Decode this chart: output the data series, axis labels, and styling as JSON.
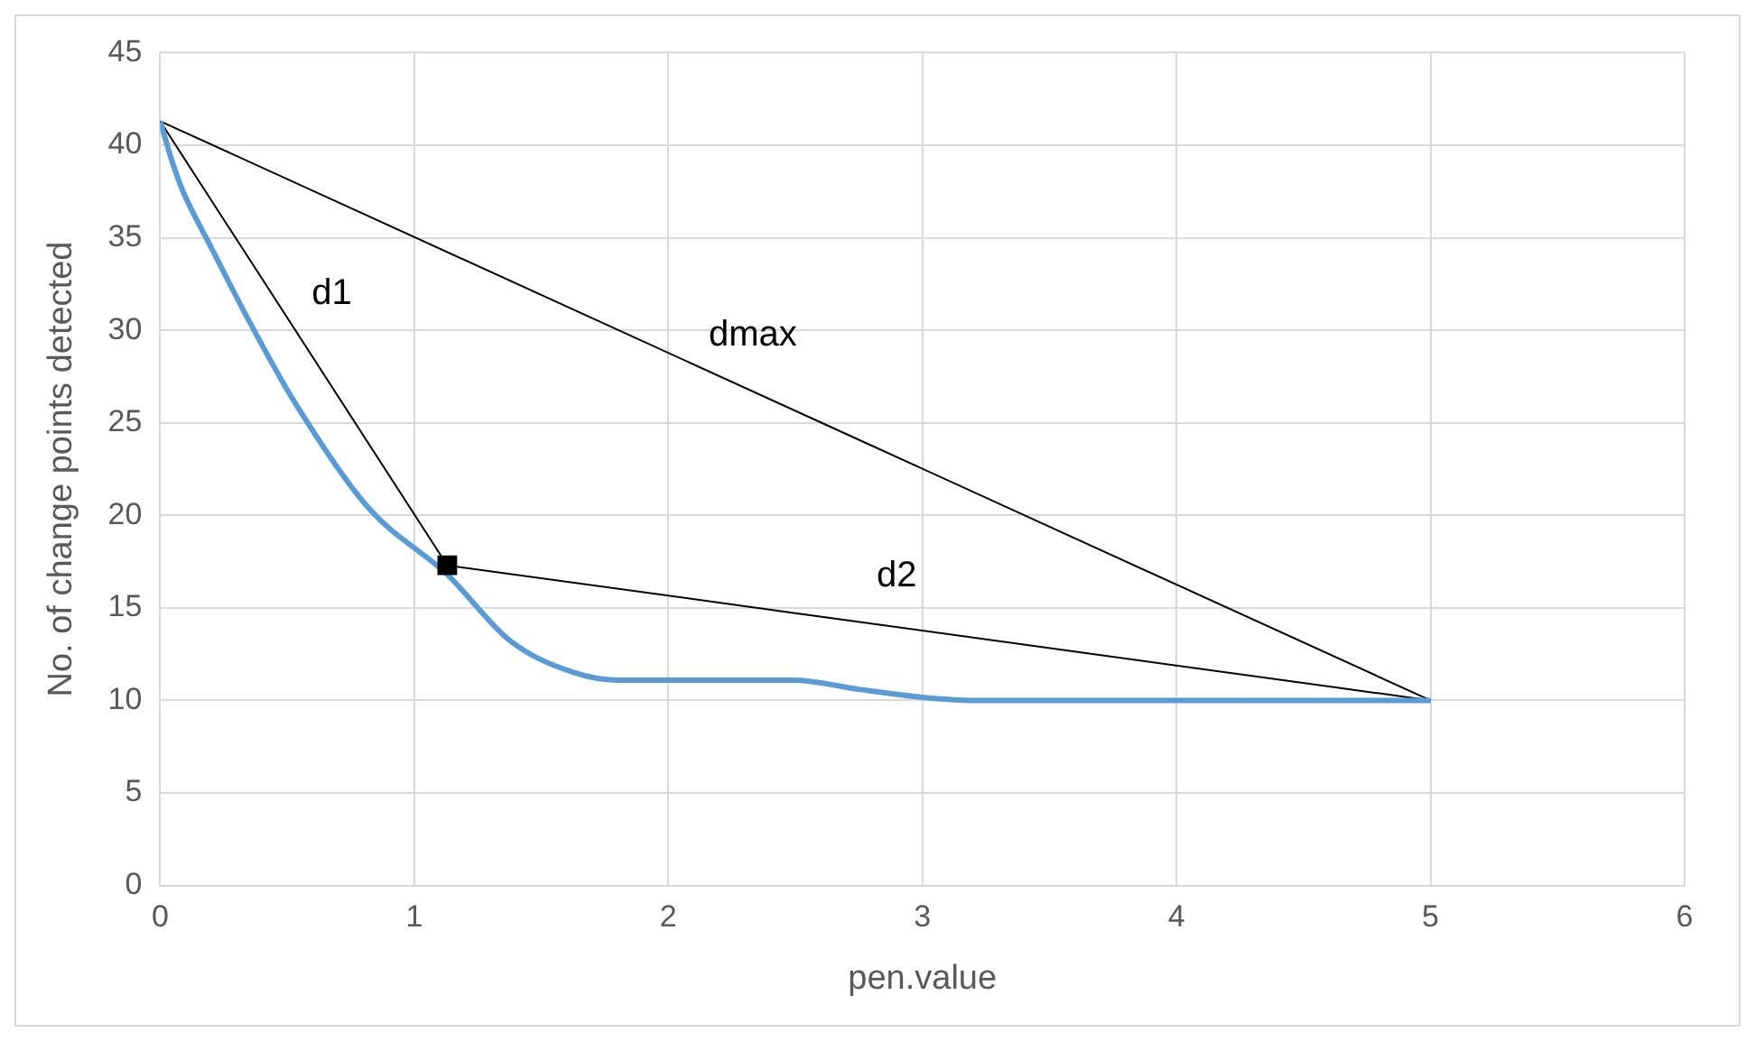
{
  "chart_data": {
    "type": "line",
    "xlabel": "pen.value",
    "ylabel": "No. of change points detected",
    "xlim": [
      0,
      6
    ],
    "xticks": [
      0,
      1,
      2,
      3,
      4,
      5,
      6
    ],
    "ylim": [
      0,
      45
    ],
    "yticks": [
      0,
      5,
      10,
      15,
      20,
      25,
      30,
      35,
      40,
      45
    ],
    "grid": true,
    "legend": false,
    "marker": "none",
    "series": [
      {
        "color": "#5b9bd5",
        "x": [
          0,
          0.05,
          0.09,
          0.2,
          0.35,
          0.53,
          0.82,
          1.13,
          1.38,
          1.63,
          1.8,
          2,
          2.49,
          2.75,
          2.98,
          3.2,
          4,
          5
        ],
        "values": [
          41.3,
          39,
          37.5,
          34.5,
          30.5,
          26.1,
          20.4,
          16.8,
          13.2,
          11.5,
          11.1,
          11.1,
          11.1,
          10.6,
          10.2,
          10,
          10,
          10
        ]
      },
      {
        "name": "dmax",
        "color": "#000000",
        "x": [
          0,
          5
        ],
        "values": [
          41.3,
          10
        ]
      },
      {
        "name": "d1",
        "color": "#000000",
        "x": [
          1.13,
          0
        ],
        "values": [
          17.3,
          41.3
        ]
      },
      {
        "name": "d2",
        "color": "#000000",
        "x": [
          1.13,
          5
        ],
        "values": [
          17.3,
          10
        ]
      },
      {
        "type": "scatter",
        "color": "#000000",
        "marker": "square",
        "x": [
          1.13
        ],
        "values": [
          17.3
        ]
      }
    ]
  }
}
